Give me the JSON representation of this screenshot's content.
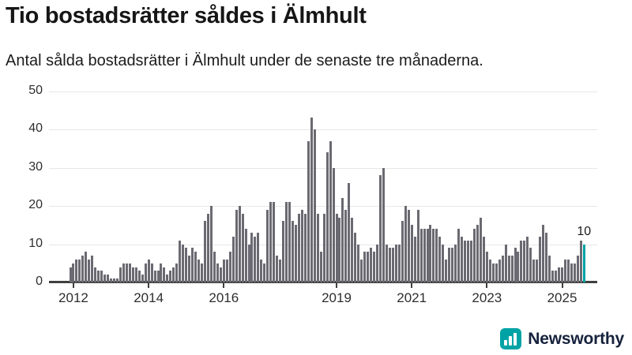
{
  "header": {
    "title": "Tio bostadsrätter såldes i Älmhult",
    "subtitle": "Antal sålda bostadsrätter i Älmhult under de senaste tre månaderna."
  },
  "chart_data": {
    "type": "bar",
    "title": "Tio bostadsrätter såldes i Älmhult",
    "subtitle": "Antal sålda bostadsrätter i Älmhult under de senaste tre månaderna.",
    "x_start": "2011-12",
    "x_end": "2025-08",
    "x_tick_labels": [
      "2012",
      "2014",
      "2016",
      "2019",
      "2021",
      "2023",
      "2025"
    ],
    "x_tick_month_index": [
      1,
      25,
      49,
      85,
      109,
      133,
      157
    ],
    "y_ticks": [
      0,
      10,
      20,
      30,
      40,
      50
    ],
    "ylim": [
      0,
      50
    ],
    "grid": "horizontal",
    "values": [
      4,
      5,
      6,
      6,
      7,
      8,
      6,
      7,
      4,
      3,
      3,
      2,
      2,
      1,
      1,
      1,
      4,
      5,
      5,
      5,
      4,
      4,
      3,
      2,
      5,
      6,
      5,
      3,
      3,
      5,
      4,
      2,
      3,
      4,
      5,
      11,
      10,
      9,
      7,
      9,
      8,
      6,
      5,
      16,
      18,
      20,
      8,
      5,
      4,
      6,
      6,
      8,
      12,
      19,
      20,
      18,
      14,
      10,
      13,
      12,
      13,
      6,
      5,
      19,
      21,
      21,
      7,
      6,
      16,
      21,
      21,
      16,
      15,
      18,
      19,
      18,
      37,
      43,
      40,
      18,
      8,
      18,
      34,
      37,
      30,
      18,
      17,
      22,
      19,
      26,
      17,
      13,
      10,
      6,
      8,
      8,
      9,
      8,
      10,
      28,
      30,
      10,
      9,
      9,
      10,
      10,
      16,
      20,
      19,
      15,
      12,
      19,
      14,
      14,
      14,
      15,
      14,
      14,
      12,
      10,
      6,
      9,
      9,
      10,
      14,
      12,
      11,
      11,
      11,
      14,
      15,
      17,
      12,
      8,
      6,
      5,
      5,
      6,
      7,
      10,
      7,
      7,
      9,
      8,
      11,
      11,
      12,
      9,
      6,
      6,
      12,
      15,
      13,
      7,
      3,
      3,
      4,
      4,
      6,
      6,
      5,
      5,
      7,
      11,
      10
    ],
    "highlight_last": true,
    "last_value_label": "10",
    "colors": {
      "bar": "#6b6a72",
      "highlight": "#00a3a5",
      "gridline": "#e7e7e7",
      "axis": "#3f3f3f",
      "text": "#1c1c1c"
    }
  },
  "footer": {
    "brand": "Newsworthy",
    "brand_color": "#16223c",
    "icon": "bar-chart-icon",
    "icon_color": "#00a3a5"
  }
}
